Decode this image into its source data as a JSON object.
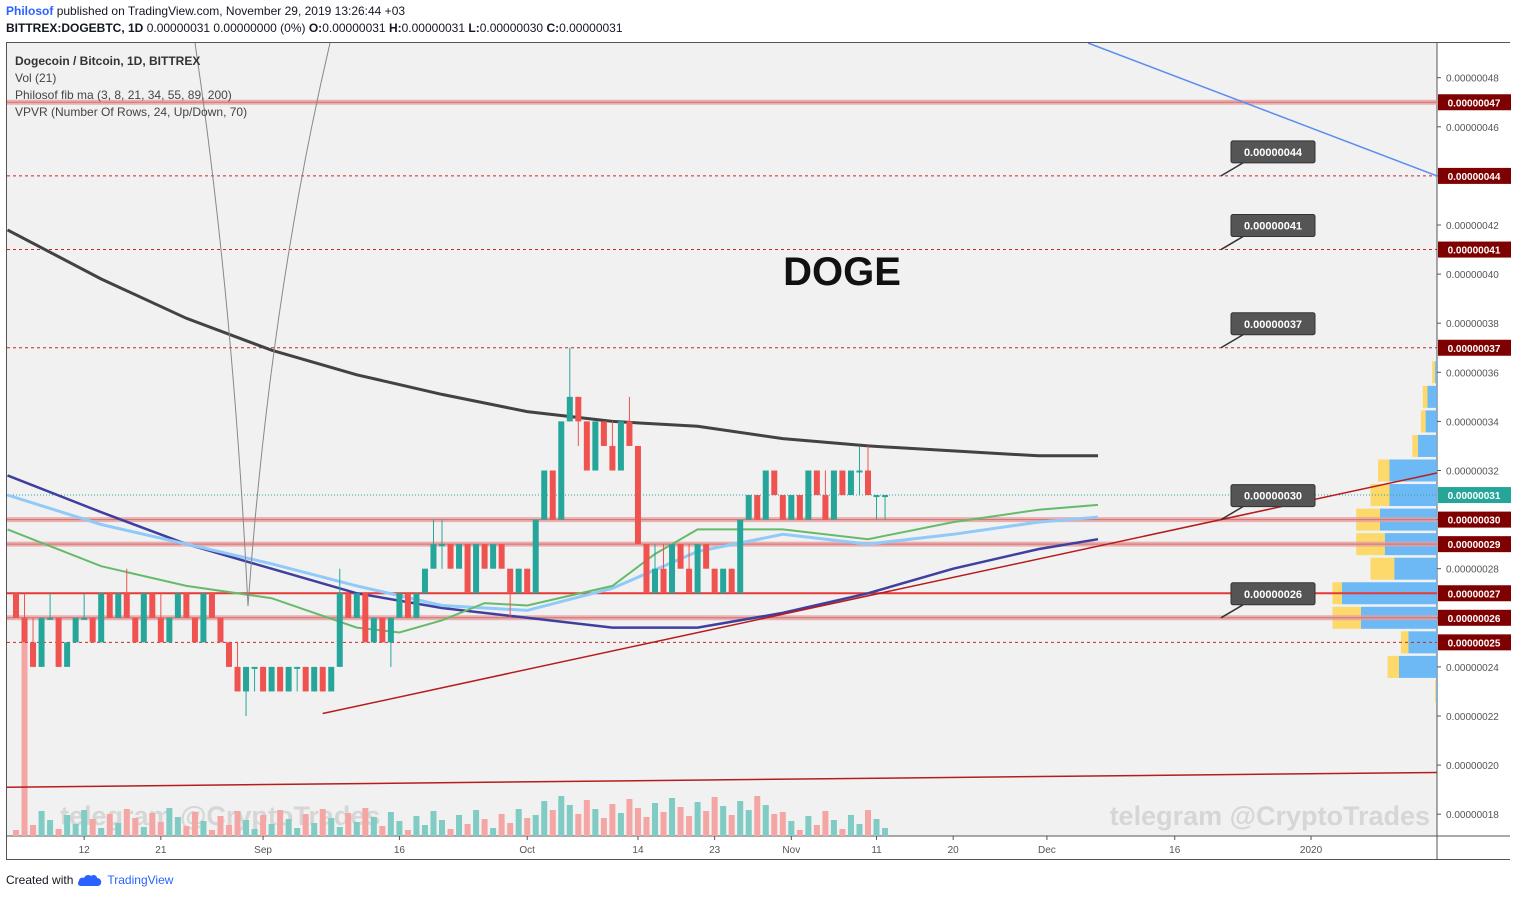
{
  "header": {
    "author": "Philosof",
    "published": "published on TradingView.com, November 29, 2019 13:26:44 +03",
    "symbol": "BITTREX:DOGEBTC, 1D",
    "ohlc_prefix": "0.00000031 0.00000000 (0%)",
    "open_label": "O:",
    "open": "0.00000031",
    "high_label": "H:",
    "high": "0.00000031",
    "low_label": "L:",
    "low": "0.00000030",
    "close_label": "C:",
    "close": "0.00000031"
  },
  "legend": {
    "title": "Dogecoin / Bitcoin, 1D, BITTREX",
    "vol": "Vol (21)",
    "fibma": "Philosof fib ma (3, 8, 21, 34, 55, 89, 200)",
    "vpvr": "VPVR (Number Of Rows, 24, Up/Down, 70)"
  },
  "annotation": {
    "title": "DOGE"
  },
  "watermark": "telegram @CryptoTrades",
  "footer": {
    "created_with": "Created with",
    "brand": "TradingView"
  },
  "colors": {
    "up": "#26a69a",
    "down": "#ef5350",
    "level_line": "#c62828",
    "price_tag": "#7f0000",
    "ma200": "#424242",
    "ma89": "#3f3f9f",
    "ma55": "#90caf9",
    "ma21": "#66bb6a"
  },
  "chart_data": {
    "type": "candlestick",
    "y_axis_ticks": [
      "0.00000048",
      "0.00000046",
      "0.00000044",
      "0.00000042",
      "0.00000040",
      "0.00000038",
      "0.00000036",
      "0.00000034",
      "0.00000032",
      "0.00000030",
      "0.00000028",
      "0.00000026",
      "0.00000024",
      "0.00000022",
      "0.00000020",
      "0.00000018"
    ],
    "x_axis_ticks": [
      "12",
      "21",
      "Sep",
      "16",
      "Oct",
      "14",
      "23",
      "Nov",
      "11",
      "20",
      "Dec",
      "16",
      "2020"
    ],
    "levels": [
      {
        "price": 4.7e-07,
        "label": "0.00000047",
        "style": "band"
      },
      {
        "price": 4.4e-07,
        "label": "0.00000044",
        "style": "dashed",
        "callout": "0.00000044"
      },
      {
        "price": 4.1e-07,
        "label": "0.00000041",
        "style": "dashed",
        "callout": "0.00000041"
      },
      {
        "price": 3.7e-07,
        "label": "0.00000037",
        "style": "dashed",
        "callout": "0.00000037"
      },
      {
        "price": 3e-07,
        "label": "0.00000030",
        "style": "band",
        "callout": "0.00000030"
      },
      {
        "price": 2.9e-07,
        "label": "0.00000029",
        "style": "band"
      },
      {
        "price": 2.7e-07,
        "label": "0.00000027",
        "style": "solid"
      },
      {
        "price": 2.6e-07,
        "label": "0.00000026",
        "style": "band",
        "callout": "0.00000026"
      },
      {
        "price": 2.5e-07,
        "label": "0.00000025",
        "style": "dashed"
      }
    ],
    "last_price": {
      "price": 3.1e-07,
      "label": "0.00000031"
    },
    "candles_start": "2019-08-04",
    "candles": [
      [
        27,
        27,
        26,
        26
      ],
      [
        26,
        27,
        25,
        25
      ],
      [
        25,
        26,
        24,
        24
      ],
      [
        24,
        26,
        24,
        26
      ],
      [
        26,
        27,
        26,
        26
      ],
      [
        26,
        26,
        24,
        24
      ],
      [
        24,
        25,
        24,
        25
      ],
      [
        25,
        26,
        25,
        26
      ],
      [
        26,
        27,
        26,
        26
      ],
      [
        26,
        26,
        25,
        25
      ],
      [
        25,
        27,
        25,
        27
      ],
      [
        27,
        27,
        26,
        26
      ],
      [
        26,
        27,
        26,
        27
      ],
      [
        27,
        28,
        26,
        26
      ],
      [
        26,
        26,
        25,
        25
      ],
      [
        25,
        27,
        25,
        27
      ],
      [
        27,
        27,
        26,
        26
      ],
      [
        26,
        27,
        25,
        25
      ],
      [
        25,
        26,
        25,
        26
      ],
      [
        26,
        27,
        26,
        27
      ],
      [
        27,
        27,
        26,
        26
      ],
      [
        26,
        26,
        25,
        25
      ],
      [
        25,
        27,
        25,
        27
      ],
      [
        27,
        27,
        26,
        26
      ],
      [
        26,
        26,
        25,
        25
      ],
      [
        25,
        25,
        24,
        24
      ],
      [
        24,
        25,
        23,
        23
      ],
      [
        23,
        24,
        22,
        24
      ],
      [
        24,
        24,
        23,
        24
      ],
      [
        24,
        24,
        23,
        23
      ],
      [
        23,
        24,
        23,
        24
      ],
      [
        24,
        24,
        23,
        23
      ],
      [
        23,
        24,
        23,
        24
      ],
      [
        24,
        24,
        23,
        24
      ],
      [
        24,
        24,
        23,
        23
      ],
      [
        23,
        24,
        23,
        24
      ],
      [
        24,
        24,
        23,
        23
      ],
      [
        23,
        24,
        23,
        24
      ],
      [
        24,
        28,
        24,
        27
      ],
      [
        27,
        27,
        26,
        26
      ],
      [
        26,
        27,
        26,
        27
      ],
      [
        27,
        27,
        25,
        25
      ],
      [
        25,
        26,
        25,
        26
      ],
      [
        26,
        26,
        25,
        25
      ],
      [
        25,
        26,
        24,
        26
      ],
      [
        26,
        27,
        26,
        27
      ],
      [
        27,
        27,
        26,
        26
      ],
      [
        26,
        27,
        26,
        27
      ],
      [
        27,
        28,
        27,
        28
      ],
      [
        28,
        30,
        28,
        29
      ],
      [
        29,
        30,
        28,
        29
      ],
      [
        29,
        29,
        28,
        28
      ],
      [
        28,
        29,
        28,
        29
      ],
      [
        29,
        29,
        27,
        27
      ],
      [
        27,
        29,
        27,
        29
      ],
      [
        29,
        29,
        28,
        28
      ],
      [
        28,
        29,
        28,
        29
      ],
      [
        29,
        29,
        28,
        28
      ],
      [
        28,
        28,
        26,
        27
      ],
      [
        27,
        28,
        27,
        28
      ],
      [
        28,
        28,
        27,
        27
      ],
      [
        27,
        30,
        27,
        30
      ],
      [
        30,
        32,
        30,
        32
      ],
      [
        32,
        32,
        30,
        30
      ],
      [
        30,
        34,
        30,
        34
      ],
      [
        34,
        37,
        34,
        35
      ],
      [
        35,
        35,
        33,
        34
      ],
      [
        34,
        34,
        32,
        32
      ],
      [
        32,
        34,
        32,
        34
      ],
      [
        34,
        34,
        33,
        33
      ],
      [
        33,
        34,
        32,
        32
      ],
      [
        32,
        34,
        32,
        34
      ],
      [
        34,
        35,
        33,
        33
      ],
      [
        33,
        33,
        29,
        29
      ],
      [
        29,
        29,
        27,
        27
      ],
      [
        27,
        29,
        27,
        28
      ],
      [
        28,
        29,
        27,
        27
      ],
      [
        27,
        29,
        27,
        29
      ],
      [
        29,
        29,
        28,
        28
      ],
      [
        28,
        29,
        27,
        27
      ],
      [
        27,
        29,
        27,
        29
      ],
      [
        29,
        29,
        28,
        28
      ],
      [
        28,
        28,
        27,
        27
      ],
      [
        27,
        28,
        27,
        28
      ],
      [
        28,
        28,
        27,
        27
      ],
      [
        27,
        30,
        27,
        30
      ],
      [
        30,
        31,
        30,
        31
      ],
      [
        31,
        31,
        30,
        30
      ],
      [
        30,
        32,
        30,
        32
      ],
      [
        32,
        32,
        31,
        31
      ],
      [
        31,
        31,
        30,
        30
      ],
      [
        30,
        31,
        30,
        31
      ],
      [
        31,
        31,
        30,
        30
      ],
      [
        30,
        32,
        30,
        32
      ],
      [
        32,
        32,
        31,
        31
      ],
      [
        31,
        32,
        30,
        30
      ],
      [
        30,
        32,
        30,
        32
      ],
      [
        32,
        32,
        31,
        31
      ],
      [
        31,
        32,
        31,
        32
      ],
      [
        32,
        33,
        31,
        32
      ],
      [
        32,
        33,
        31,
        31
      ],
      [
        31,
        31,
        30,
        31
      ],
      [
        31,
        31,
        30,
        31
      ]
    ],
    "volume_profile": [
      {
        "price": 3.6e-07,
        "up": 0.02,
        "down": 0.03
      },
      {
        "price": 3.5e-07,
        "up": 0.1,
        "down": 0.05
      },
      {
        "price": 3.4e-07,
        "up": 0.12,
        "down": 0.05
      },
      {
        "price": 3.3e-07,
        "up": 0.2,
        "down": 0.06
      },
      {
        "price": 3.2e-07,
        "up": 0.5,
        "down": 0.12
      },
      {
        "price": 3.1e-07,
        "up": 0.5,
        "down": 0.2
      },
      {
        "price": 3e-07,
        "up": 0.6,
        "down": 0.25
      },
      {
        "price": 2.9e-07,
        "up": 0.55,
        "down": 0.3
      },
      {
        "price": 2.8e-07,
        "up": 0.45,
        "down": 0.25
      },
      {
        "price": 2.7e-07,
        "up": 1.0,
        "down": 0.1
      },
      {
        "price": 2.6e-07,
        "up": 0.8,
        "down": 0.3
      },
      {
        "price": 2.5e-07,
        "up": 0.3,
        "down": 0.08
      },
      {
        "price": 2.4e-07,
        "up": 0.4,
        "down": 0.12
      },
      {
        "price": 2.3e-07,
        "up": 0.01,
        "down": 0.01
      }
    ]
  }
}
